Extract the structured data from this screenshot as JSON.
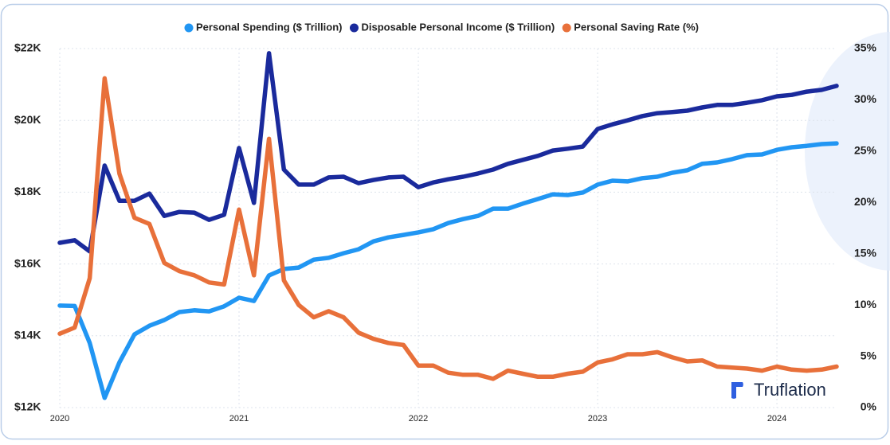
{
  "chart_data": {
    "type": "line",
    "x": [
      2020,
      2020.083,
      2020.167,
      2020.25,
      2020.333,
      2020.417,
      2020.5,
      2020.583,
      2020.667,
      2020.75,
      2020.833,
      2020.917,
      2021,
      2021.083,
      2021.167,
      2021.25,
      2021.333,
      2021.417,
      2021.5,
      2021.583,
      2021.667,
      2021.75,
      2021.833,
      2021.917,
      2022,
      2022.083,
      2022.167,
      2022.25,
      2022.333,
      2022.417,
      2022.5,
      2022.583,
      2022.667,
      2022.75,
      2022.833,
      2022.917,
      2023,
      2023.083,
      2023.167,
      2023.25,
      2023.333,
      2023.417,
      2023.5,
      2023.583,
      2023.667,
      2023.75,
      2023.833,
      2023.917,
      2024,
      2024.083,
      2024.167,
      2024.25,
      2024.333
    ],
    "xlim": [
      2020,
      2024.333
    ],
    "xticks": [
      2020,
      2021,
      2022,
      2023,
      2024
    ],
    "ylim": [
      12000,
      22000
    ],
    "yticks": [
      {
        "value": 12000,
        "label": "$12K"
      },
      {
        "value": 14000,
        "label": "$14K"
      },
      {
        "value": 16000,
        "label": "$16K"
      },
      {
        "value": 18000,
        "label": "$18K"
      },
      {
        "value": 20000,
        "label": "$20K"
      },
      {
        "value": 22000,
        "label": "$22K"
      }
    ],
    "y2lim": [
      0,
      35
    ],
    "y2ticks": [
      {
        "value": 0,
        "label": "0%"
      },
      {
        "value": 5,
        "label": "5%"
      },
      {
        "value": 10,
        "label": "10%"
      },
      {
        "value": 15,
        "label": "15%"
      },
      {
        "value": 20,
        "label": "20%"
      },
      {
        "value": 25,
        "label": "25%"
      },
      {
        "value": 30,
        "label": "30%"
      },
      {
        "value": 35,
        "label": "35%"
      }
    ],
    "grid": true,
    "legend": "top",
    "series": [
      {
        "name": "Personal Spending ($ Trillion)",
        "color": "#2196f3",
        "values": [
          14840,
          14830,
          13800,
          12270,
          13260,
          14040,
          14280,
          14440,
          14660,
          14710,
          14680,
          14820,
          15060,
          14970,
          15680,
          15860,
          15900,
          16120,
          16170,
          16300,
          16410,
          16630,
          16740,
          16810,
          16880,
          16970,
          17140,
          17250,
          17340,
          17540,
          17540,
          17680,
          17810,
          17940,
          17920,
          17990,
          18210,
          18320,
          18300,
          18390,
          18430,
          18540,
          18610,
          18790,
          18830,
          18920,
          19030,
          19050,
          19180,
          19250,
          19290,
          19340,
          19360
        ]
      },
      {
        "name": "Disposable Personal Income ($ Trillion)",
        "color": "#1a2a9c",
        "values": [
          16590,
          16660,
          16350,
          18740,
          17760,
          17760,
          17960,
          17340,
          17450,
          17430,
          17230,
          17370,
          19230,
          17700,
          21870,
          18630,
          18210,
          18210,
          18410,
          18430,
          18250,
          18340,
          18410,
          18430,
          18140,
          18270,
          18360,
          18430,
          18520,
          18630,
          18790,
          18900,
          19010,
          19160,
          19210,
          19270,
          19760,
          19890,
          20000,
          20120,
          20200,
          20230,
          20270,
          20360,
          20430,
          20430,
          20490,
          20560,
          20670,
          20710,
          20800,
          20850,
          20960
        ]
      },
      {
        "name": "Personal Saving Rate (%)",
        "color": "#e8703a",
        "axis": "y2",
        "values": [
          7.2,
          7.8,
          12.6,
          32.1,
          22.8,
          18.5,
          17.9,
          14.1,
          13.3,
          12.9,
          12.2,
          12.0,
          19.3,
          12.9,
          26.2,
          12.4,
          10.0,
          8.8,
          9.4,
          8.8,
          7.3,
          6.7,
          6.3,
          6.1,
          4.1,
          4.1,
          3.4,
          3.2,
          3.2,
          2.8,
          3.6,
          3.3,
          3.0,
          3.0,
          3.3,
          3.5,
          4.4,
          4.7,
          5.2,
          5.2,
          5.4,
          4.9,
          4.5,
          4.6,
          4.0,
          3.9,
          3.8,
          3.6,
          4.0,
          3.7,
          3.6,
          3.7,
          4.0
        ]
      }
    ]
  },
  "logo_text": "Truflation"
}
